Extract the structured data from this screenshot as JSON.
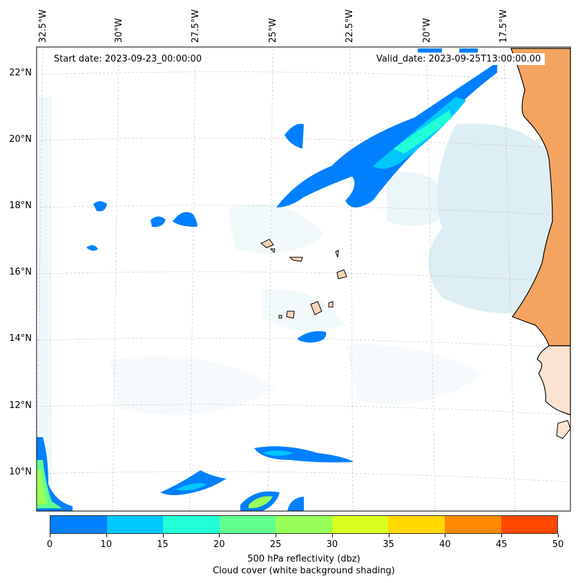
{
  "start_date": "Start date: 2023-09-23_00:00:00",
  "valid_date": "Valid_date: 2023-09-25T13:00:00.00",
  "lon_labels": [
    "32.5°W",
    "30°W",
    "27.5°W",
    "25°W",
    "22.5°W",
    "20°W",
    "17.5°W"
  ],
  "lat_labels": [
    "22°N",
    "20°N",
    "18°N",
    "16°N",
    "14°N",
    "12°N",
    "10°N"
  ],
  "colorbar": {
    "ticks": [
      "0",
      "10",
      "15",
      "20",
      "25",
      "30",
      "35",
      "40",
      "45",
      "50"
    ],
    "colors": [
      "#0080ff",
      "#00c8ff",
      "#20ffd8",
      "#60ff90",
      "#98ff58",
      "#d8ff20",
      "#ffd800",
      "#ff8800",
      "#ff4800"
    ],
    "label_line1": "500 hPa reflectivity (dbz)",
    "label_line2": "Cloud cover (white background shading)"
  },
  "colors": {
    "land": "#f4a460",
    "island": "#f9d4b4",
    "cloud": "#bfe0ea",
    "coast": "#000000"
  }
}
